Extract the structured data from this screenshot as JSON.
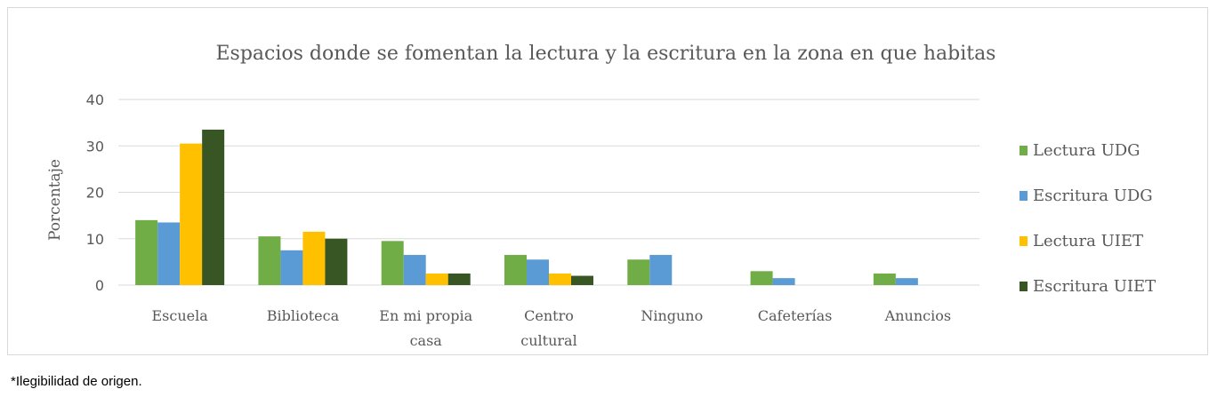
{
  "footnote": "*Ilegibilidad de origen.",
  "chart_data": {
    "type": "bar",
    "title": "Espacios donde se fomentan la lectura y la escritura en la zona en que habitas",
    "xlabel": "",
    "ylabel": "Porcentaje",
    "ylim": [
      0,
      40
    ],
    "yticks": [
      0,
      10,
      20,
      30,
      40
    ],
    "grid": true,
    "legend_position": "right",
    "categories": [
      "Escuela",
      "Biblioteca",
      "En mi propia casa",
      "Centro cultural",
      "Ninguno",
      "Cafeterías",
      "Anuncios"
    ],
    "category_lines": [
      [
        "Escuela"
      ],
      [
        "Biblioteca"
      ],
      [
        "En mi propia",
        "casa"
      ],
      [
        "Centro",
        "cultural"
      ],
      [
        "Ninguno"
      ],
      [
        "Cafeterías"
      ],
      [
        "Anuncios"
      ]
    ],
    "series": [
      {
        "name": "Lectura UDG",
        "color": "#70ad47",
        "values": [
          14,
          10.5,
          9.5,
          6.5,
          5.5,
          3,
          2.5
        ]
      },
      {
        "name": "Escritura UDG",
        "color": "#5b9bd5",
        "values": [
          13.5,
          7.5,
          6.5,
          5.5,
          6.5,
          1.5,
          1.5
        ]
      },
      {
        "name": "Lectura UIET",
        "color": "#ffc000",
        "values": [
          30.5,
          11.5,
          2.5,
          2.5,
          0,
          0,
          0
        ]
      },
      {
        "name": "Escritura UIET",
        "color": "#375623",
        "values": [
          33.5,
          10,
          2.5,
          2,
          0,
          0,
          0
        ]
      }
    ]
  }
}
